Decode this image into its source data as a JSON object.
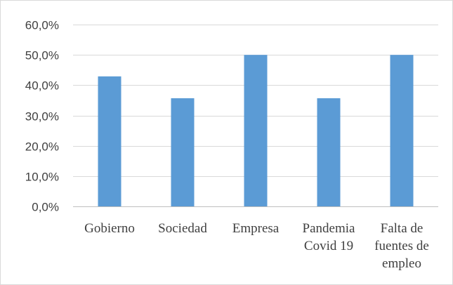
{
  "chart_data": {
    "type": "bar",
    "categories": [
      [
        "Gobierno"
      ],
      [
        "Sociedad"
      ],
      [
        "Empresa"
      ],
      [
        "Pandemia",
        "Covid 19"
      ],
      [
        "Falta de",
        "fuentes de",
        "empleo"
      ]
    ],
    "values": [
      42.9,
      35.7,
      50.0,
      35.7,
      50.0
    ],
    "ylim": [
      0,
      60
    ],
    "yticks": [
      "0,0%",
      "10,0%",
      "20,0%",
      "30,0%",
      "40,0%",
      "50,0%",
      "60,0%"
    ],
    "title": "",
    "xlabel": "",
    "ylabel": "",
    "grid": true,
    "colors": {
      "bar": "#5b9bd5",
      "grid": "#d9d9d9",
      "axis": "#bfbfbf",
      "text": "#404040"
    }
  }
}
